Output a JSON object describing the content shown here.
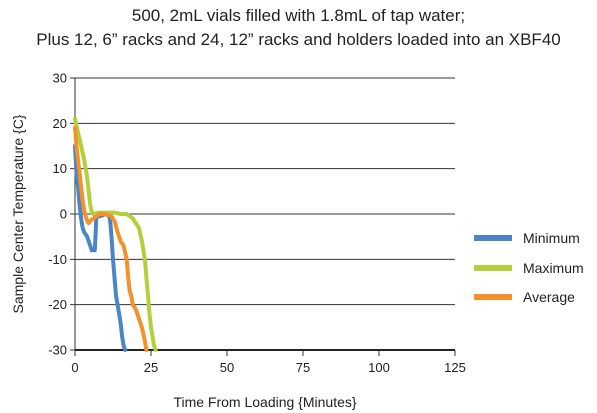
{
  "chart_data": {
    "type": "line",
    "title": [
      "500, 2mL vials filled with 1.8mL of tap water;",
      "Plus 12, 6” racks and 24, 12” racks and holders loaded into an XBF40"
    ],
    "xlabel": "Time From Loading {Minutes}",
    "ylabel": "Sample Center Temperature {C}",
    "xlim": [
      0,
      125
    ],
    "ylim": [
      -30,
      30
    ],
    "x_ticks": [
      0,
      25,
      50,
      75,
      100,
      125
    ],
    "y_ticks": [
      30,
      20,
      10,
      0,
      -10,
      -20,
      -30
    ],
    "grid": "horizontal",
    "legend": "right",
    "series": [
      {
        "name": "Minimum",
        "color": "#4a86c5",
        "points": [
          [
            0,
            15
          ],
          [
            0.5,
            9
          ],
          [
            1,
            6
          ],
          [
            1.5,
            2
          ],
          [
            2,
            -1
          ],
          [
            2.5,
            -3
          ],
          [
            3,
            -4
          ],
          [
            4,
            -5
          ],
          [
            5,
            -7
          ],
          [
            5.5,
            -8
          ],
          [
            6.5,
            -8
          ],
          [
            7,
            -1
          ],
          [
            7.5,
            -0.5
          ],
          [
            8,
            -0.5
          ],
          [
            9,
            -0.3
          ],
          [
            10,
            0
          ],
          [
            11,
            -0.3
          ],
          [
            11.5,
            -1
          ],
          [
            12,
            -5
          ],
          [
            12.5,
            -10
          ],
          [
            13,
            -14
          ],
          [
            13.5,
            -18
          ],
          [
            14,
            -20
          ],
          [
            14.5,
            -22
          ],
          [
            15,
            -24
          ],
          [
            15.5,
            -27
          ],
          [
            16,
            -29
          ],
          [
            16.5,
            -30
          ]
        ]
      },
      {
        "name": "Maximum",
        "color": "#b4cf3c",
        "points": [
          [
            0,
            21
          ],
          [
            1,
            18
          ],
          [
            2,
            15
          ],
          [
            3,
            12
          ],
          [
            4,
            8
          ],
          [
            4.5,
            5
          ],
          [
            5,
            2
          ],
          [
            5.5,
            0.5
          ],
          [
            6,
            0
          ],
          [
            8,
            0.3
          ],
          [
            10,
            0.3
          ],
          [
            13,
            0.3
          ],
          [
            15,
            0
          ],
          [
            17,
            0
          ],
          [
            19,
            -1
          ],
          [
            20,
            -2
          ],
          [
            21,
            -3
          ],
          [
            22,
            -6
          ],
          [
            23,
            -10
          ],
          [
            23.5,
            -14
          ],
          [
            24,
            -18
          ],
          [
            24.5,
            -22
          ],
          [
            25,
            -25
          ],
          [
            25.5,
            -27
          ],
          [
            26,
            -29
          ],
          [
            26.5,
            -30
          ]
        ]
      },
      {
        "name": "Average",
        "color": "#f3922c",
        "points": [
          [
            0,
            19
          ],
          [
            0.5,
            15
          ],
          [
            1,
            12
          ],
          [
            1.5,
            9
          ],
          [
            2,
            6
          ],
          [
            2.5,
            3
          ],
          [
            3,
            1
          ],
          [
            3.5,
            -0.5
          ],
          [
            4,
            -1.5
          ],
          [
            4.5,
            -2
          ],
          [
            5,
            -1.5
          ],
          [
            6,
            -1
          ],
          [
            7,
            -0.5
          ],
          [
            8,
            0
          ],
          [
            10,
            0
          ],
          [
            12,
            -0.5
          ],
          [
            13,
            -1.5
          ],
          [
            14,
            -4
          ],
          [
            15,
            -6
          ],
          [
            16,
            -7
          ],
          [
            17,
            -10
          ],
          [
            17.5,
            -14
          ],
          [
            18,
            -17
          ],
          [
            18.5,
            -18
          ],
          [
            19,
            -20
          ],
          [
            20,
            -21
          ],
          [
            21,
            -23
          ],
          [
            22,
            -25
          ],
          [
            23,
            -28
          ],
          [
            23.5,
            -30
          ]
        ]
      }
    ]
  }
}
